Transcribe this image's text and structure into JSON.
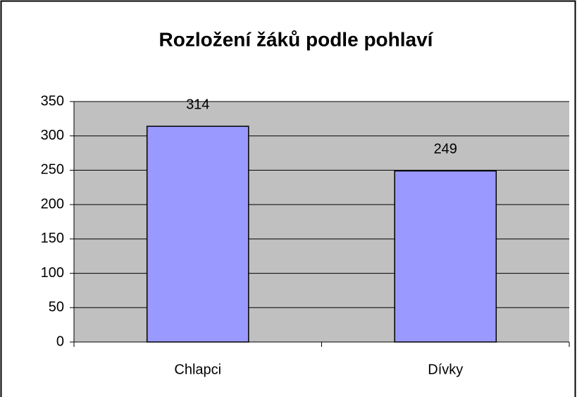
{
  "chart_data": {
    "type": "bar",
    "title": "Rozložení žáků podle pohlaví",
    "categories": [
      "Chlapci",
      "Dívky"
    ],
    "values": [
      314,
      249
    ],
    "color": "#9999ff",
    "ylim": [
      0,
      350
    ],
    "yticks": [
      0,
      50,
      100,
      150,
      200,
      250,
      300,
      350
    ],
    "grid": true
  }
}
